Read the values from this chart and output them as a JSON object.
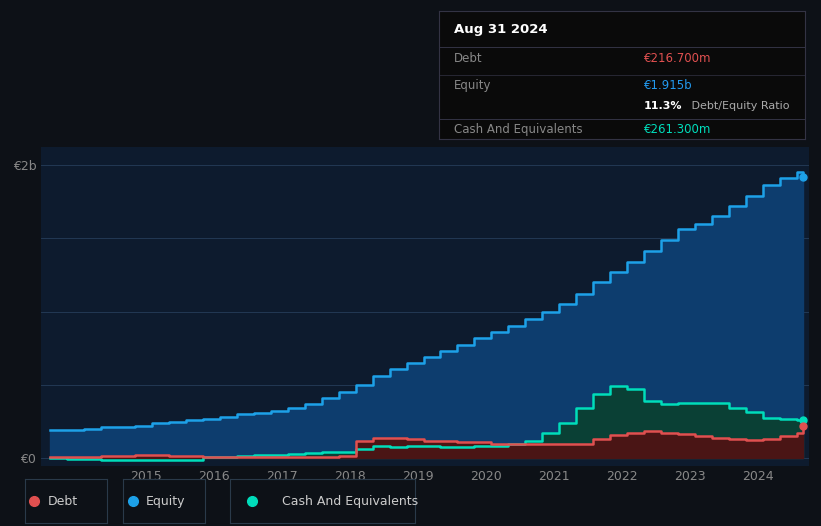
{
  "background_color": "#0d1117",
  "plot_bg_color": "#0d1b2e",
  "grid_color": "#263d5a",
  "title_box": {
    "date": "Aug 31 2024",
    "debt_label": "Debt",
    "debt_value": "€216.700m",
    "equity_label": "Equity",
    "equity_value": "€1.915b",
    "ratio_text": "11.3% Debt/Equity Ratio",
    "cash_label": "Cash And Equivalents",
    "cash_value": "€261.300m",
    "bg_color": "#0a0a0a",
    "date_color": "#ffffff",
    "label_color": "#888888",
    "debt_val_color": "#e05050",
    "equity_val_color": "#2299ee",
    "ratio_bold_color": "#ffffff",
    "ratio_plain_color": "#aaaaaa",
    "cash_val_color": "#00ddbb",
    "separator_color": "#333344"
  },
  "y_label_2b": "€2b",
  "y_label_0": "€0",
  "equity": {
    "x": [
      2013.58,
      2013.83,
      2014.08,
      2014.33,
      2014.58,
      2014.83,
      2015.08,
      2015.33,
      2015.58,
      2015.83,
      2016.08,
      2016.33,
      2016.58,
      2016.83,
      2017.08,
      2017.33,
      2017.58,
      2017.83,
      2018.08,
      2018.33,
      2018.58,
      2018.83,
      2019.08,
      2019.33,
      2019.58,
      2019.83,
      2020.08,
      2020.33,
      2020.58,
      2020.83,
      2021.08,
      2021.33,
      2021.58,
      2021.83,
      2022.08,
      2022.33,
      2022.58,
      2022.83,
      2023.08,
      2023.33,
      2023.58,
      2023.83,
      2024.08,
      2024.33,
      2024.58,
      2024.67
    ],
    "y": [
      0.19,
      0.19,
      0.2,
      0.21,
      0.21,
      0.22,
      0.24,
      0.25,
      0.26,
      0.27,
      0.28,
      0.3,
      0.31,
      0.32,
      0.34,
      0.37,
      0.41,
      0.45,
      0.5,
      0.56,
      0.61,
      0.65,
      0.69,
      0.73,
      0.77,
      0.82,
      0.86,
      0.9,
      0.95,
      1.0,
      1.05,
      1.12,
      1.2,
      1.27,
      1.34,
      1.41,
      1.49,
      1.56,
      1.6,
      1.65,
      1.72,
      1.79,
      1.86,
      1.91,
      1.95,
      1.915
    ],
    "color": "#1da1e8",
    "fill_color": "#0d3d6e",
    "linewidth": 1.8
  },
  "cash": {
    "x": [
      2013.58,
      2013.83,
      2014.08,
      2014.33,
      2014.58,
      2014.83,
      2015.08,
      2015.33,
      2015.58,
      2015.83,
      2016.08,
      2016.33,
      2016.58,
      2016.83,
      2017.08,
      2017.33,
      2017.58,
      2017.83,
      2018.08,
      2018.33,
      2018.58,
      2018.83,
      2019.08,
      2019.33,
      2019.58,
      2019.83,
      2020.08,
      2020.33,
      2020.58,
      2020.83,
      2021.08,
      2021.33,
      2021.58,
      2021.83,
      2022.08,
      2022.33,
      2022.58,
      2022.83,
      2023.08,
      2023.33,
      2023.58,
      2023.83,
      2024.08,
      2024.33,
      2024.58,
      2024.67
    ],
    "y": [
      0.0,
      -0.005,
      -0.005,
      -0.01,
      -0.015,
      -0.015,
      -0.01,
      -0.015,
      -0.015,
      0.005,
      0.01,
      0.015,
      0.02,
      0.025,
      0.03,
      0.035,
      0.04,
      0.045,
      0.06,
      0.085,
      0.075,
      0.085,
      0.085,
      0.075,
      0.075,
      0.08,
      0.085,
      0.095,
      0.115,
      0.17,
      0.24,
      0.34,
      0.44,
      0.49,
      0.475,
      0.39,
      0.37,
      0.375,
      0.375,
      0.375,
      0.345,
      0.315,
      0.275,
      0.265,
      0.26,
      0.261
    ],
    "color": "#00ddbb",
    "fill_color": "#0a4035",
    "linewidth": 1.8
  },
  "debt": {
    "x": [
      2013.58,
      2013.83,
      2014.08,
      2014.33,
      2014.58,
      2014.83,
      2015.08,
      2015.33,
      2015.58,
      2015.83,
      2016.08,
      2016.33,
      2016.58,
      2016.83,
      2017.08,
      2017.33,
      2017.58,
      2017.83,
      2018.08,
      2018.33,
      2018.58,
      2018.83,
      2019.08,
      2019.33,
      2019.58,
      2019.83,
      2020.08,
      2020.33,
      2020.58,
      2020.83,
      2021.08,
      2021.33,
      2021.58,
      2021.83,
      2022.08,
      2022.33,
      2022.58,
      2022.83,
      2023.08,
      2023.33,
      2023.58,
      2023.83,
      2024.08,
      2024.33,
      2024.58,
      2024.67
    ],
    "y": [
      0.005,
      0.008,
      0.01,
      0.015,
      0.018,
      0.02,
      0.025,
      0.018,
      0.015,
      0.01,
      0.01,
      0.01,
      0.01,
      0.01,
      0.01,
      0.01,
      0.01,
      0.015,
      0.12,
      0.14,
      0.135,
      0.13,
      0.12,
      0.115,
      0.11,
      0.11,
      0.1,
      0.1,
      0.1,
      0.1,
      0.1,
      0.1,
      0.13,
      0.155,
      0.175,
      0.185,
      0.175,
      0.165,
      0.15,
      0.14,
      0.13,
      0.125,
      0.13,
      0.15,
      0.17,
      0.2167
    ],
    "color": "#e05050",
    "fill_color": "#4a1515",
    "linewidth": 1.8
  },
  "xlim": [
    2013.45,
    2024.75
  ],
  "ylim": [
    -0.05,
    2.12
  ],
  "xtick_labels": [
    "2015",
    "2016",
    "2017",
    "2018",
    "2019",
    "2020",
    "2021",
    "2022",
    "2023",
    "2024"
  ],
  "xtick_positions": [
    2015,
    2016,
    2017,
    2018,
    2019,
    2020,
    2021,
    2022,
    2023,
    2024
  ],
  "legend": {
    "items": [
      {
        "label": "Debt",
        "color": "#e05050"
      },
      {
        "label": "Equity",
        "color": "#1da1e8"
      },
      {
        "label": "Cash And Equivalents",
        "color": "#00ddbb"
      }
    ],
    "text_color": "#cccccc",
    "bg_color": "#0d1b2e",
    "border_color": "#2a3a4a"
  }
}
